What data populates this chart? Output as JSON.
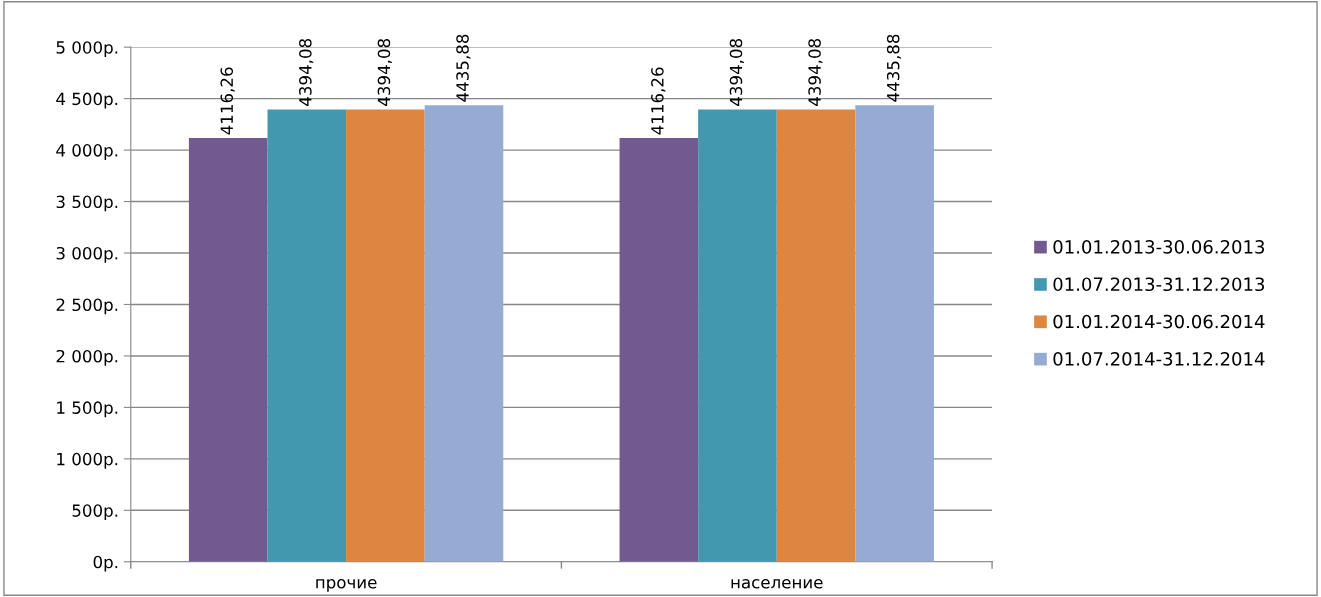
{
  "chart_data": {
    "type": "bar",
    "categories": [
      "прочие",
      "население"
    ],
    "series": [
      {
        "name": "01.01.2013-30.06.2013",
        "color": "#725990",
        "values": [
          4116.26,
          4116.26
        ],
        "value_labels": [
          "4116,26",
          "4116,26"
        ]
      },
      {
        "name": "01.07.2013-31.12.2013",
        "color": "#4298af",
        "values": [
          4394.08,
          4394.08
        ],
        "value_labels": [
          "4394,08",
          "4394,08"
        ]
      },
      {
        "name": "01.01.2014-30.06.2014",
        "color": "#dd8640",
        "values": [
          4394.08,
          4394.08
        ],
        "value_labels": [
          "4394,08",
          "4394,08"
        ]
      },
      {
        "name": "01.07.2014-31.12.2014",
        "color": "#95abd3",
        "values": [
          4435.88,
          4435.88
        ],
        "value_labels": [
          "4435,88",
          "4435,88"
        ]
      }
    ],
    "ylim": [
      0,
      5000
    ],
    "yticks": [
      {
        "value": 0,
        "label": "0р."
      },
      {
        "value": 500,
        "label": "500р."
      },
      {
        "value": 1000,
        "label": "1 000р."
      },
      {
        "value": 1500,
        "label": "1 500р."
      },
      {
        "value": 2000,
        "label": "2 000р."
      },
      {
        "value": 2500,
        "label": "2 500р."
      },
      {
        "value": 3000,
        "label": "3 000р."
      },
      {
        "value": 3500,
        "label": "3 500р."
      },
      {
        "value": 4000,
        "label": "4 000р."
      },
      {
        "value": 4500,
        "label": "4 500р."
      },
      {
        "value": 5000,
        "label": "5 000р."
      }
    ],
    "grid": "y",
    "legend": "right"
  }
}
